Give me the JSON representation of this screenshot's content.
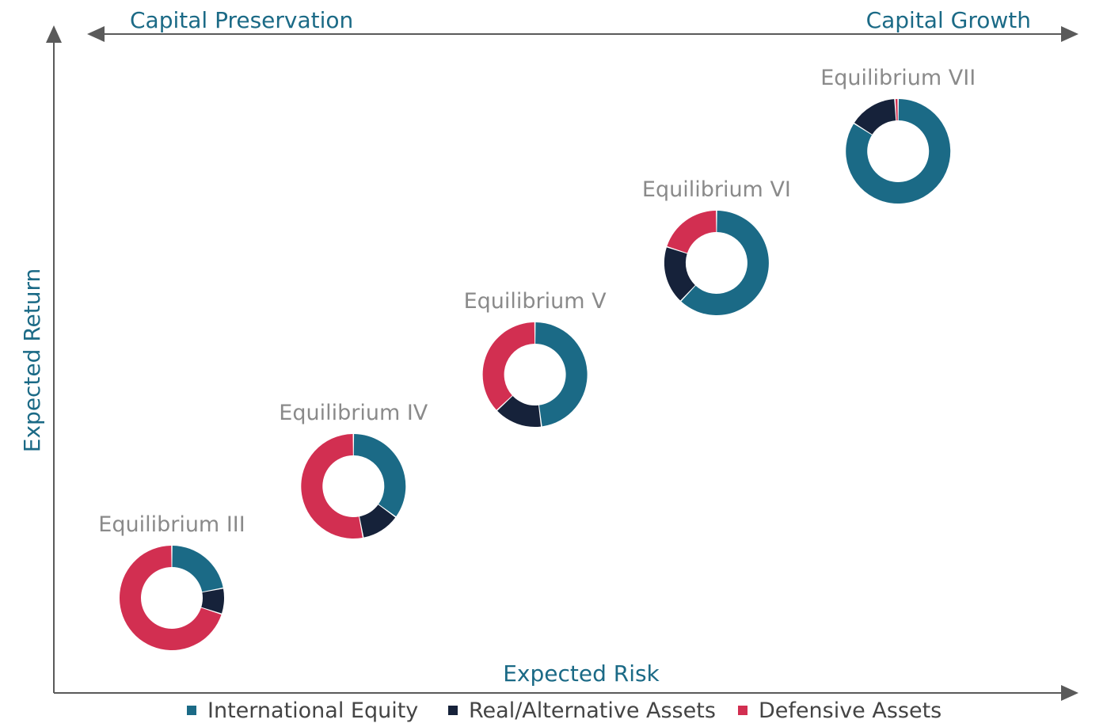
{
  "colors": {
    "axis": "#5a5a5a",
    "accent_text": "#1b6a86",
    "label_text": "#8a8a8a",
    "legend_text": "#444444"
  },
  "chart_data": {
    "type": "scatter",
    "subtype": "donut-scatter",
    "title": "",
    "xlabel": "Expected Risk",
    "ylabel": "Expected Return",
    "top_left_label": "Capital Preservation",
    "top_right_label": "Capital Growth",
    "grid": false,
    "legend_position": "bottom",
    "categories": [
      "International Equity",
      "Real/Alternative Assets",
      "Defensive Assets"
    ],
    "category_colors": [
      "#1b6a86",
      "#16223a",
      "#d22f51"
    ],
    "series": [
      {
        "name": "Equilibrium III",
        "x": 1,
        "y": 1,
        "values": [
          22,
          8,
          70
        ]
      },
      {
        "name": "Equilibrium IV",
        "x": 2,
        "y": 2,
        "values": [
          35,
          12,
          53
        ]
      },
      {
        "name": "Equilibrium V",
        "x": 3,
        "y": 3,
        "values": [
          48,
          15,
          37
        ]
      },
      {
        "name": "Equilibrium VI",
        "x": 4,
        "y": 4,
        "values": [
          62,
          18,
          20
        ]
      },
      {
        "name": "Equilibrium VII",
        "x": 5,
        "y": 5,
        "values": [
          84,
          15,
          1
        ]
      }
    ]
  }
}
